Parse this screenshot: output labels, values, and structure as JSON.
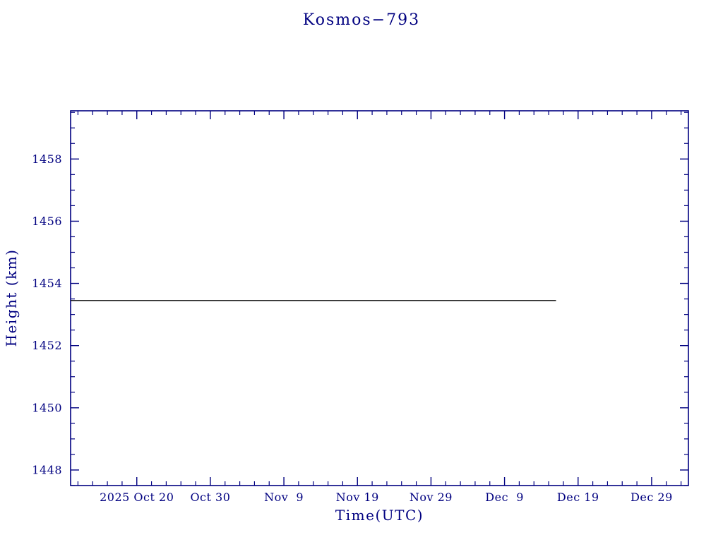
{
  "page": {
    "background": "#ffffff"
  },
  "chart_data": {
    "type": "line",
    "title": "Kosmos−793",
    "xlabel": "Time(UTC)",
    "ylabel": "Height (km)",
    "axis_color": "#000080",
    "line_color": "#000000",
    "grid": false,
    "legend": "none",
    "xlim": [
      0,
      84
    ],
    "ylim": [
      1447.5,
      1459.55
    ],
    "x_axis_note": "x values are days since 2025 Oct 11 (left edge of plot)",
    "x_ticks": [
      {
        "pos": 9,
        "label": "2025 Oct 20"
      },
      {
        "pos": 19,
        "label": "Oct 30"
      },
      {
        "pos": 29,
        "label": "Nov  9"
      },
      {
        "pos": 39,
        "label": "Nov 19"
      },
      {
        "pos": 49,
        "label": "Nov 29"
      },
      {
        "pos": 59,
        "label": "Dec  9"
      },
      {
        "pos": 69,
        "label": "Dec 19"
      },
      {
        "pos": 79,
        "label": "Dec 29"
      }
    ],
    "x_minor_step": 2,
    "y_ticks": [
      {
        "pos": 1448,
        "label": "1448"
      },
      {
        "pos": 1450,
        "label": "1450"
      },
      {
        "pos": 1452,
        "label": "1452"
      },
      {
        "pos": 1454,
        "label": "1454"
      },
      {
        "pos": 1456,
        "label": "1456"
      },
      {
        "pos": 1458,
        "label": "1458"
      }
    ],
    "y_minor_step": 0.5,
    "series": [
      {
        "name": "height",
        "x": [
          0,
          66
        ],
        "y": [
          1453.45,
          1453.45
        ]
      }
    ]
  }
}
